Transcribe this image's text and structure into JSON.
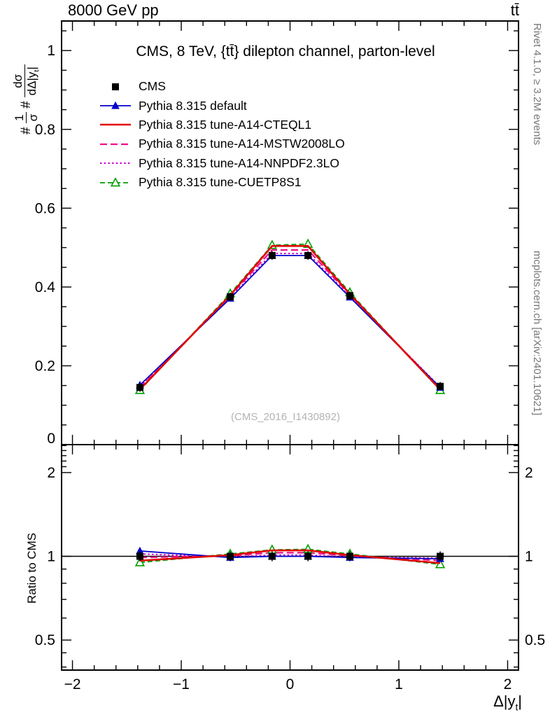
{
  "header": {
    "left": "8000 GeV pp",
    "right": "tt̄"
  },
  "title": "CMS, 8 TeV, {tt̄} dilepton channel, parton-level",
  "watermark": "(CMS_2016_I1430892)",
  "side_notes": {
    "top_right": "Rivet 4.1.0, ≥ 3.2M events",
    "bottom_right": "mcplots.cern.ch [arXiv:2401.10621]"
  },
  "ylabel": {
    "hash1": "#",
    "num1": "1",
    "den1": "σ",
    "hash2": "#",
    "num2": "dσ",
    "den2_main": "dΔ|y",
    "den2_sub": "t",
    "den2_end": "|"
  },
  "xlabel": {
    "main": "Δ|y",
    "sub": "t",
    "end": "|"
  },
  "chart_data": {
    "type": "line",
    "x": [
      -1.38,
      -0.55,
      -0.165,
      0.165,
      0.55,
      1.38
    ],
    "x_axis": {
      "label": "Δ|y_t|",
      "min": -2.1,
      "max": 2.1,
      "major_ticks": [
        -2,
        -1,
        0,
        1,
        2
      ],
      "tick_labels": [
        "−2",
        "−1",
        "0",
        "1",
        "2"
      ],
      "minor_step": 0.2
    },
    "main_axis": {
      "min": 0,
      "max": 1.075,
      "major_ticks": [
        0,
        0.2,
        0.4,
        0.6,
        0.8,
        1
      ],
      "tick_labels": [
        "0",
        "0.2",
        "0.4",
        "0.6",
        "0.8",
        "1"
      ],
      "minor_step": 0.05
    },
    "ratio_axis": {
      "scale": "log",
      "min": 0.39,
      "max": 2.52,
      "major_ticks": [
        0.5,
        1,
        2
      ],
      "tick_labels": [
        "0.5",
        "1",
        "2"
      ],
      "minor_ticks": [
        0.4,
        0.45,
        0.6,
        0.7,
        0.8,
        0.9,
        2.1,
        2.2,
        2.3,
        2.4,
        2.5
      ],
      "label": "Ratio to CMS"
    },
    "series": [
      {
        "name": "CMS",
        "color": "#000000",
        "line": "none",
        "marker": "square-filled",
        "z": 10,
        "width": 1.5,
        "values": [
          0.145,
          0.375,
          0.48,
          0.48,
          0.378,
          0.148
        ],
        "ratio": [
          1,
          1,
          1,
          1,
          1,
          1
        ]
      },
      {
        "name": "Pythia 8.315 default",
        "color": "#0000cc",
        "line": "solid",
        "marker": "triangle-filled",
        "z": 6,
        "width": 1.8,
        "values": [
          0.151,
          0.371,
          0.48,
          0.48,
          0.374,
          0.145
        ],
        "ratio": [
          1.045,
          0.99,
          1.0,
          1.0,
          0.99,
          0.98
        ]
      },
      {
        "name": "Pythia 8.315 tune-A14-CTEQL1",
        "color": "#e10600",
        "line": "solid",
        "marker": "none",
        "z": 7,
        "width": 2.6,
        "values": [
          0.14,
          0.379,
          0.504,
          0.504,
          0.382,
          0.14
        ],
        "ratio": [
          0.965,
          1.01,
          1.05,
          1.05,
          1.01,
          0.945
        ]
      },
      {
        "name": "Pythia 8.315 tune-A14-MSTW2008LO",
        "color": "#ee0e8c",
        "line": "dashed",
        "dash": "10,5",
        "marker": "none",
        "z": 4,
        "width": 2.2,
        "values": [
          0.144,
          0.377,
          0.494,
          0.494,
          0.38,
          0.143
        ],
        "ratio": [
          0.99,
          1.005,
          1.03,
          1.03,
          1.005,
          0.965
        ]
      },
      {
        "name": "Pythia 8.315 tune-A14-NNPDF2.3LO",
        "color": "#cc00cc",
        "line": "dotted",
        "dash": "2.5,3.2",
        "marker": "none",
        "z": 3,
        "width": 2.0,
        "values": [
          0.148,
          0.373,
          0.485,
          0.485,
          0.376,
          0.146
        ],
        "ratio": [
          1.02,
          0.995,
          1.01,
          1.01,
          0.995,
          0.985
        ]
      },
      {
        "name": "Pythia 8.315 tune-CUETP8S1",
        "color": "#00a000",
        "line": "dashed",
        "dash": "7,4",
        "marker": "triangle-open",
        "z": 5,
        "width": 1.8,
        "values": [
          0.138,
          0.383,
          0.506,
          0.509,
          0.386,
          0.138
        ],
        "ratio": [
          0.95,
          1.02,
          1.055,
          1.06,
          1.02,
          0.935
        ]
      }
    ]
  }
}
